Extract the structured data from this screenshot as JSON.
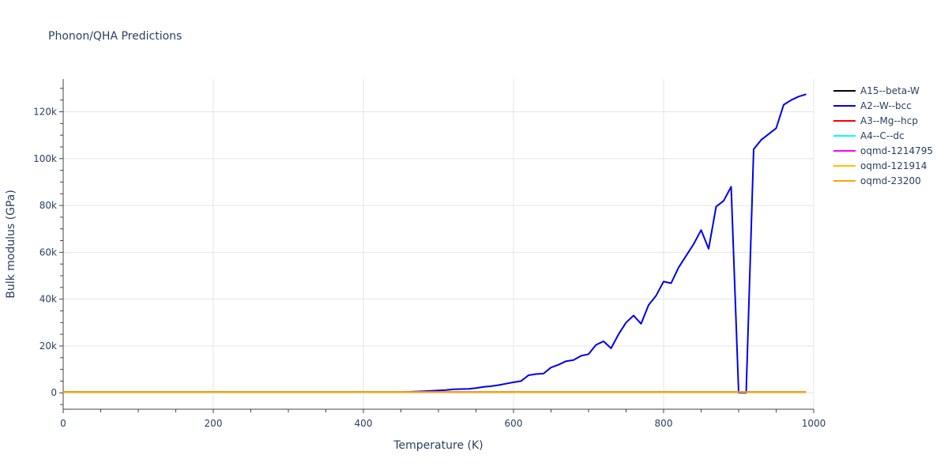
{
  "chart_data": {
    "type": "line",
    "title": "Phonon/QHA Predictions",
    "xlabel": "Temperature (K)",
    "ylabel": "Bulk modulus (GPa)",
    "xlim": [
      0,
      1000
    ],
    "ylim": [
      -7000,
      134000
    ],
    "x_ticks": [
      0,
      200,
      400,
      600,
      800,
      1000
    ],
    "x_tick_labels": [
      "0",
      "200",
      "400",
      "600",
      "800",
      "1000"
    ],
    "y_ticks": [
      0,
      20000,
      40000,
      60000,
      80000,
      100000,
      120000
    ],
    "y_tick_labels": [
      "0",
      "20k",
      "40k",
      "60k",
      "80k",
      "100k",
      "120k"
    ],
    "grid": true,
    "legend_position": "right",
    "series": [
      {
        "name": "A15--beta-W",
        "color": "#000000",
        "x": [
          0,
          990
        ],
        "y": [
          300,
          300
        ]
      },
      {
        "name": "A2--W--bcc",
        "color": "#0000ee",
        "x": [
          0,
          100,
          200,
          300,
          400,
          450,
          480,
          510,
          520,
          540,
          550,
          560,
          570,
          580,
          590,
          600,
          610,
          620,
          630,
          640,
          650,
          660,
          670,
          680,
          690,
          700,
          710,
          720,
          730,
          740,
          750,
          760,
          770,
          780,
          790,
          800,
          810,
          820,
          830,
          840,
          850,
          860,
          870,
          880,
          890,
          900,
          905,
          910,
          920,
          930,
          940,
          950,
          960,
          970,
          980,
          990
        ],
        "y": [
          300,
          300,
          300,
          300,
          300,
          300,
          700,
          1200,
          1500,
          1700,
          2000,
          2500,
          2800,
          3300,
          3900,
          4500,
          5000,
          7500,
          8000,
          8200,
          10800,
          12000,
          13500,
          14000,
          15800,
          16500,
          20500,
          22000,
          19000,
          25000,
          30000,
          33000,
          29500,
          37500,
          41500,
          47500,
          46800,
          53500,
          58500,
          63500,
          69500,
          61500,
          79500,
          82000,
          88000,
          0,
          0,
          0,
          104000,
          108000,
          110500,
          113000,
          123000,
          125000,
          126500,
          127500
        ]
      },
      {
        "name": "A3--Mg--hcp",
        "color": "#ff0000",
        "x": [
          0,
          990
        ],
        "y": [
          300,
          300
        ]
      },
      {
        "name": "A4--C--dc",
        "color": "#00ffff",
        "x": [
          0,
          990
        ],
        "y": [
          300,
          300
        ]
      },
      {
        "name": "oqmd-1214795",
        "color": "#ff00ff",
        "x": [
          0,
          990
        ],
        "y": [
          300,
          300
        ]
      },
      {
        "name": "oqmd-121914",
        "color": "#ffc000",
        "x": [
          0,
          990
        ],
        "y": [
          300,
          300
        ]
      },
      {
        "name": "oqmd-23200",
        "color": "#ffa500",
        "x": [
          0,
          990
        ],
        "y": [
          300,
          300
        ]
      }
    ]
  }
}
